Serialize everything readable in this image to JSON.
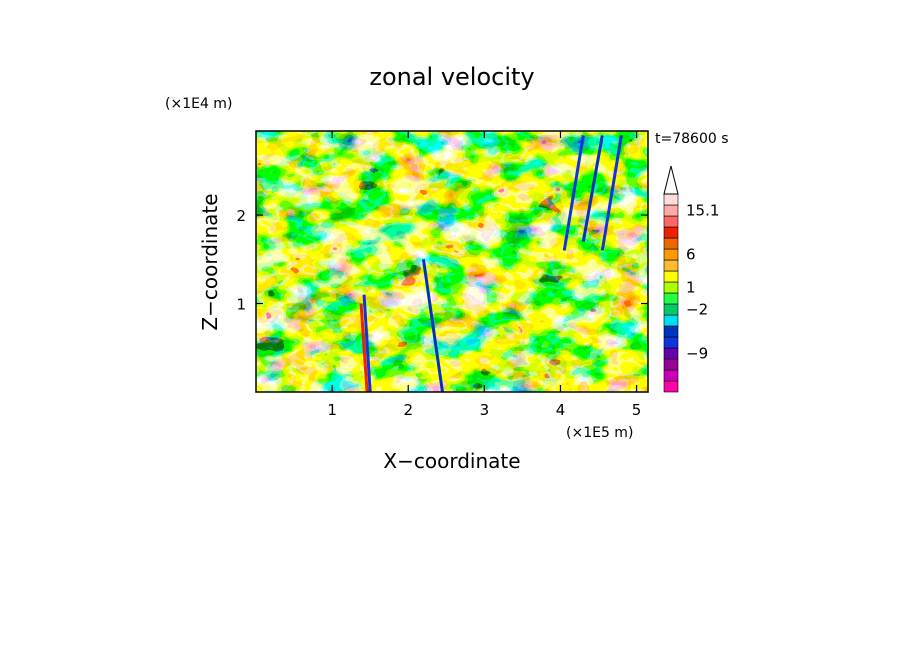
{
  "chart_data": {
    "type": "heatmap",
    "title": "zonal velocity",
    "xlabel": "X−coordinate",
    "ylabel": "Z−coordinate",
    "x_scale_label": "(×1E5 m)",
    "y_scale_label": "(×1E4 m)",
    "time_label": "t=78600 s",
    "x_ticks": [
      "1",
      "2",
      "3",
      "4",
      "5"
    ],
    "y_ticks": [
      "1",
      "2"
    ],
    "xlim": [
      0,
      5.15
    ],
    "ylim": [
      0,
      2.95
    ],
    "colorbar": {
      "tick_labels": [
        "15.1",
        "6",
        "1",
        "−2",
        "−9"
      ],
      "levels": [
        {
          "color": "#ff00aa"
        },
        {
          "color": "#cc00bb"
        },
        {
          "color": "#990099"
        },
        {
          "color": "#6600aa"
        },
        {
          "color": "#1133dd"
        },
        {
          "color": "#0033bb"
        },
        {
          "color": "#00ddee"
        },
        {
          "color": "#00cc66"
        },
        {
          "color": "#22ff44"
        },
        {
          "color": "#aaff00"
        },
        {
          "color": "#ffff00"
        },
        {
          "color": "#ffbb33"
        },
        {
          "color": "#ff9900"
        },
        {
          "color": "#ee6600"
        },
        {
          "color": "#ee2200"
        },
        {
          "color": "#ff6666"
        },
        {
          "color": "#ffaaaa"
        },
        {
          "color": "#ffdddd"
        },
        {
          "color": "#ffffff"
        }
      ]
    }
  }
}
